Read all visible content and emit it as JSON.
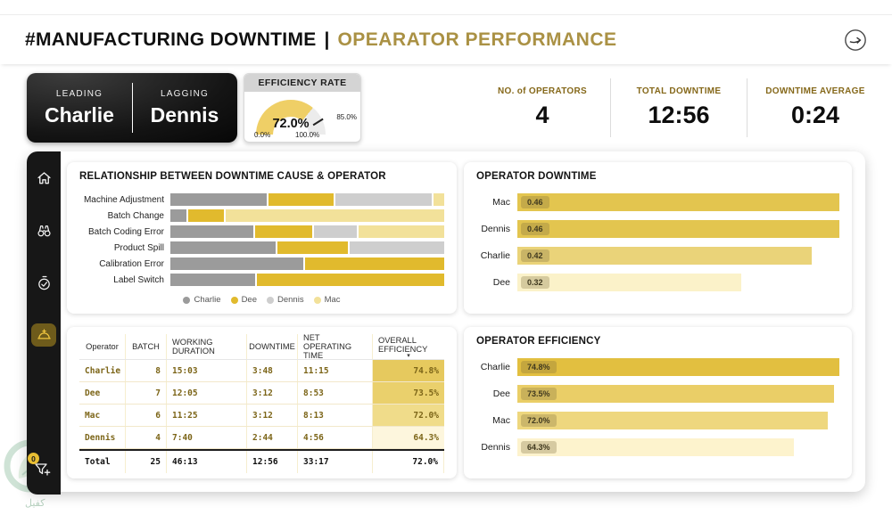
{
  "header": {
    "title": "#MANUFACTURING DOWNTIME",
    "divider": "|",
    "subtitle": "OPEARATOR PERFORMANCE"
  },
  "leading_card": {
    "label": "LEADING",
    "value": "Charlie"
  },
  "lagging_card": {
    "label": "LAGGING",
    "value": "Dennis"
  },
  "gauge": {
    "title": "EFFICIENCY RATE",
    "value_label": "72.0%",
    "value_pct": 72,
    "min_label": "0.0%",
    "max_label": "100.0%",
    "target_label": "85.0%",
    "target_pct": 85,
    "arc_color": "#EFCF66",
    "arc_rest_color": "#ECECEC"
  },
  "kpis": [
    {
      "label": "NO. of OPERATORS",
      "value": "4"
    },
    {
      "label": "TOTAL DOWNTIME",
      "value": "12:56"
    },
    {
      "label": "DOWNTIME AVERAGE",
      "value": "0:24"
    }
  ],
  "sidebar": {
    "icons": [
      "home",
      "binoculars",
      "gauge",
      "hard-hat",
      "add-filter"
    ],
    "active_icon": "hard-hat",
    "filter_badge": "0"
  },
  "watermark": {
    "text": "كفيل"
  },
  "chart_data": [
    {
      "id": "cause_operator",
      "type": "bar",
      "variant": "stacked-horizontal-100pct",
      "title": "RELATIONSHIP BETWEEN DOWNTIME CAUSE & OPERATOR",
      "categories": [
        "Machine Adjustment",
        "Batch Change",
        "Batch Coding Error",
        "Product Spill",
        "Calibration Error",
        "Label Switch"
      ],
      "series": [
        {
          "name": "Charlie",
          "color": "#9B9B9B",
          "values": [
            36,
            6,
            31,
            39,
            49,
            31
          ]
        },
        {
          "name": "Dee",
          "color": "#E1BA2D",
          "values": [
            24,
            13,
            21,
            26,
            51,
            69
          ]
        },
        {
          "name": "Dennis",
          "color": "#CECECE",
          "values": [
            36,
            0,
            16,
            35,
            0,
            0
          ]
        },
        {
          "name": "Mac",
          "color": "#F2E19A",
          "values": [
            4,
            81,
            32,
            0,
            0,
            0
          ]
        }
      ],
      "legend_position": "bottom"
    },
    {
      "id": "operator_downtime",
      "type": "bar",
      "variant": "horizontal",
      "title": "OPERATOR DOWNTIME",
      "categories": [
        "Mac",
        "Dennis",
        "Charlie",
        "Dee"
      ],
      "values": [
        0.46,
        0.46,
        0.42,
        0.32
      ],
      "value_labels": [
        "0.46",
        "0.46",
        "0.42",
        "0.32"
      ],
      "bar_colors": [
        "#E3C54F",
        "#E3C54F",
        "#EAD379",
        "#FBF2C9"
      ],
      "xlim": [
        0,
        0.46
      ]
    },
    {
      "id": "operator_efficiency",
      "type": "bar",
      "variant": "horizontal",
      "title": "OPERATOR EFFICIENCY",
      "categories": [
        "Charlie",
        "Dee",
        "Mac",
        "Dennis"
      ],
      "values": [
        74.8,
        73.5,
        72.0,
        64.3
      ],
      "value_labels": [
        "74.8%",
        "73.5%",
        "72.0%",
        "64.3%"
      ],
      "bar_colors": [
        "#E2BF40",
        "#EACE67",
        "#EED77E",
        "#FDF3CD"
      ],
      "xlim": [
        0,
        74.8
      ]
    },
    {
      "id": "operator_table",
      "type": "table",
      "columns": [
        "Operator",
        "BATCH",
        "WORKING DURATION",
        "DOWNTIME",
        "NET OPERATING TIME",
        "OVERALL EFFICIENCY"
      ],
      "sorted_column": "OVERALL EFFICIENCY",
      "rows": [
        [
          "Charlie",
          "8",
          "15:03",
          "3:48",
          "11:15",
          "74.8%"
        ],
        [
          "Dee",
          "7",
          "12:05",
          "3:12",
          "8:53",
          "73.5%"
        ],
        [
          "Mac",
          "6",
          "11:25",
          "3:12",
          "8:13",
          "72.0%"
        ],
        [
          "Dennis",
          "4",
          "7:40",
          "2:44",
          "4:56",
          "64.3%"
        ]
      ],
      "total_row": [
        "Total",
        "25",
        "46:13",
        "12:56",
        "33:17",
        "72.0%"
      ],
      "efficiency_cell_colors": [
        "#E6C95E",
        "#EAD06C",
        "#F0DC8A",
        "#FDF6DD"
      ]
    }
  ]
}
